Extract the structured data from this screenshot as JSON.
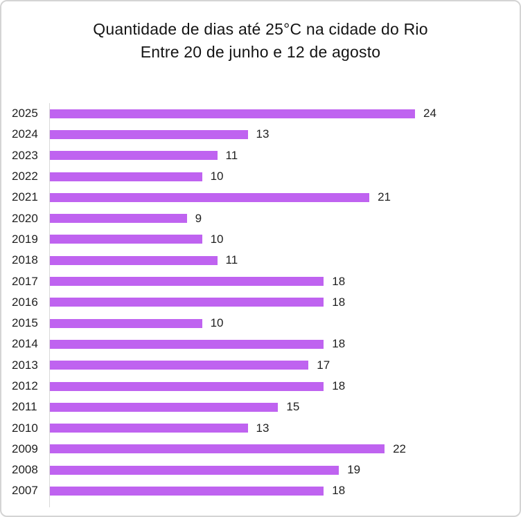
{
  "chart": {
    "title_line1": "Quantidade de dias até 25°C na cidade do Rio",
    "title_line2": "Entre 20 de junho e 12 de agosto"
  },
  "chart_data": {
    "type": "bar",
    "orientation": "horizontal",
    "title": "Quantidade de dias até 25°C na cidade do Rio",
    "subtitle": "Entre 20 de junho e 12 de agosto",
    "categories": [
      "2025",
      "2024",
      "2023",
      "2022",
      "2021",
      "2020",
      "2019",
      "2018",
      "2017",
      "2016",
      "2015",
      "2014",
      "2013",
      "2012",
      "2011",
      "2010",
      "2009",
      "2008",
      "2007"
    ],
    "values": [
      24,
      13,
      11,
      10,
      21,
      9,
      10,
      11,
      18,
      18,
      10,
      18,
      17,
      18,
      15,
      13,
      22,
      19,
      18
    ],
    "xlabel": "",
    "ylabel": "",
    "xlim": [
      0,
      24
    ],
    "grid": false,
    "legend": "none",
    "data_labels": true,
    "bar_color": "#bf63f0",
    "axis_color": "#d9d9d9",
    "text_color": "#1f1f1f"
  }
}
